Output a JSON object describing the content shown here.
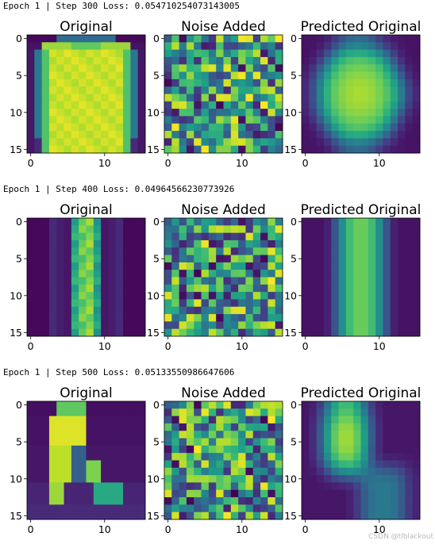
{
  "figure": {
    "watermark": "CSDN @tlblackout",
    "colormap": "viridis",
    "image_size": [
      16,
      16
    ],
    "row_count": 3,
    "panel_titles": [
      "Original",
      "Noise Added",
      "Predicted Original"
    ]
  },
  "chart_data": [
    {
      "type": "heatmap",
      "log_text": "Epoch 1 | Step 300 Loss: 0.054710254073143005",
      "panels": [
        {
          "title": "Original",
          "subject": "shirt",
          "xticks": [
            "0",
            "10"
          ],
          "yticks": [
            "0",
            "5",
            "10",
            "15"
          ],
          "x_range": [
            0,
            15
          ],
          "y_range": [
            0,
            15
          ]
        },
        {
          "title": "Noise Added",
          "subject": "noise",
          "xticks": [
            "0",
            "10"
          ],
          "yticks": [
            "0",
            "5",
            "10",
            "15"
          ],
          "x_range": [
            0,
            15
          ],
          "y_range": [
            0,
            15
          ]
        },
        {
          "title": "Predicted Original",
          "subject": "shirt_blur",
          "xticks": [
            "0",
            "10"
          ],
          "yticks": [
            "0",
            "5",
            "10",
            "15"
          ],
          "x_range": [
            0,
            15
          ],
          "y_range": [
            0,
            15
          ]
        }
      ]
    },
    {
      "type": "heatmap",
      "log_text": "Epoch 1 | Step 400 Loss: 0.04964566230773926",
      "panels": [
        {
          "title": "Original",
          "subject": "trousers",
          "xticks": [
            "0",
            "10"
          ],
          "yticks": [
            "0",
            "5",
            "10",
            "15"
          ],
          "x_range": [
            0,
            15
          ],
          "y_range": [
            0,
            15
          ]
        },
        {
          "title": "Noise Added",
          "subject": "noise",
          "xticks": [
            "0",
            "10"
          ],
          "yticks": [
            "0",
            "5",
            "10",
            "15"
          ],
          "x_range": [
            0,
            15
          ],
          "y_range": [
            0,
            15
          ]
        },
        {
          "title": "Predicted Original",
          "subject": "trousers_blur",
          "xticks": [
            "0",
            "10"
          ],
          "yticks": [
            "0",
            "5",
            "10",
            "15"
          ],
          "x_range": [
            0,
            15
          ],
          "y_range": [
            0,
            15
          ]
        }
      ]
    },
    {
      "type": "heatmap",
      "log_text": "Epoch 1 | Step 500 Loss: 0.05133550986647606",
      "panels": [
        {
          "title": "Original",
          "subject": "boot",
          "xticks": [
            "0",
            "10"
          ],
          "yticks": [
            "0",
            "5",
            "10",
            "15"
          ],
          "x_range": [
            0,
            15
          ],
          "y_range": [
            0,
            15
          ]
        },
        {
          "title": "Noise Added",
          "subject": "noise",
          "xticks": [
            "0",
            "10"
          ],
          "yticks": [
            "0",
            "5",
            "10",
            "15"
          ],
          "x_range": [
            0,
            15
          ],
          "y_range": [
            0,
            15
          ]
        },
        {
          "title": "Predicted Original",
          "subject": "boot_blur",
          "xticks": [
            "0",
            "10"
          ],
          "yticks": [
            "0",
            "5",
            "10",
            "15"
          ],
          "x_range": [
            0,
            15
          ],
          "y_range": [
            0,
            15
          ]
        }
      ]
    }
  ]
}
